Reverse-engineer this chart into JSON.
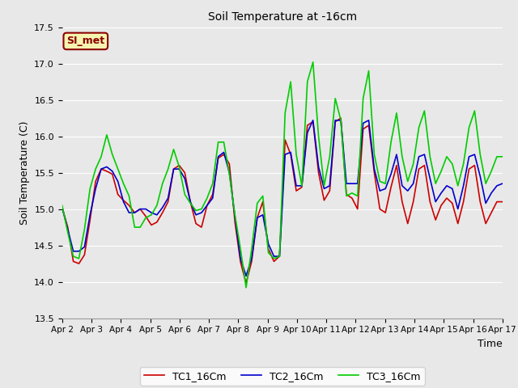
{
  "title": "Soil Temperature at -16cm",
  "xlabel": "Time",
  "ylabel": "Soil Temperature (C)",
  "ylim": [
    13.5,
    17.5
  ],
  "yticks": [
    13.5,
    14.0,
    14.5,
    15.0,
    15.5,
    16.0,
    16.5,
    17.0,
    17.5
  ],
  "background_color": "#e8e8e8",
  "plot_bg_color": "#e8e8e8",
  "grid_color": "#ffffff",
  "legend_label": "SI_met",
  "legend_bg": "#f5f5b0",
  "legend_border": "#8b0000",
  "series": [
    {
      "label": "TC1_16Cm",
      "color": "#cc0000"
    },
    {
      "label": "TC2_16Cm",
      "color": "#0000cc"
    },
    {
      "label": "TC3_16Cm",
      "color": "#00cc00"
    }
  ],
  "x_tick_labels": [
    "Apr 2",
    "Apr 3",
    "Apr 4",
    "Apr 5",
    "Apr 6",
    "Apr 7",
    "Apr 8",
    "Apr 9",
    "Apr 10",
    "Apr 11",
    "Apr 12",
    "Apr 13",
    "Apr 14",
    "Apr 15",
    "Apr 16",
    "Apr 17"
  ],
  "TC1_16Cm": [
    15.02,
    14.75,
    14.28,
    14.25,
    14.37,
    14.85,
    15.38,
    15.55,
    15.52,
    15.48,
    15.2,
    15.12,
    15.05,
    14.95,
    15.0,
    14.9,
    14.78,
    14.82,
    14.95,
    15.1,
    15.55,
    15.6,
    15.5,
    15.1,
    14.8,
    14.75,
    15.05,
    15.2,
    15.7,
    15.75,
    15.62,
    14.82,
    14.27,
    13.98,
    14.28,
    14.88,
    15.1,
    14.45,
    14.28,
    14.35,
    15.95,
    15.75,
    15.25,
    15.3,
    16.15,
    16.2,
    15.5,
    15.12,
    15.25,
    16.2,
    16.25,
    15.2,
    15.15,
    15.0,
    16.1,
    16.15,
    15.5,
    15.0,
    14.95,
    15.3,
    15.6,
    15.1,
    14.8,
    15.1,
    15.55,
    15.6,
    15.1,
    14.85,
    15.05,
    15.15,
    15.08,
    14.8,
    15.1,
    15.55,
    15.6,
    15.1,
    14.8,
    14.95,
    15.1,
    15.1
  ],
  "TC2_16Cm": [
    15.02,
    14.72,
    14.42,
    14.42,
    14.48,
    14.92,
    15.28,
    15.55,
    15.58,
    15.52,
    15.38,
    15.1,
    14.95,
    14.95,
    15.0,
    15.0,
    14.95,
    14.92,
    15.02,
    15.15,
    15.55,
    15.55,
    15.42,
    15.1,
    14.92,
    14.95,
    15.05,
    15.15,
    15.72,
    15.78,
    15.5,
    14.9,
    14.32,
    14.08,
    14.32,
    14.88,
    14.92,
    14.52,
    14.35,
    14.35,
    15.75,
    15.78,
    15.32,
    15.32,
    16.05,
    16.22,
    15.58,
    15.28,
    15.32,
    16.22,
    16.22,
    15.35,
    15.35,
    15.35,
    16.18,
    16.22,
    15.55,
    15.25,
    15.28,
    15.48,
    15.75,
    15.32,
    15.25,
    15.35,
    15.72,
    15.75,
    15.42,
    15.1,
    15.22,
    15.32,
    15.28,
    15.0,
    15.32,
    15.72,
    15.75,
    15.45,
    15.08,
    15.22,
    15.32,
    15.35
  ],
  "TC3_16Cm": [
    15.05,
    14.68,
    14.35,
    14.32,
    14.72,
    15.28,
    15.55,
    15.72,
    16.02,
    15.75,
    15.55,
    15.35,
    15.18,
    14.75,
    14.75,
    14.88,
    14.92,
    15.05,
    15.35,
    15.55,
    15.82,
    15.58,
    15.2,
    15.08,
    14.98,
    15.0,
    15.15,
    15.35,
    15.92,
    15.92,
    15.48,
    14.92,
    14.45,
    13.92,
    14.45,
    15.08,
    15.18,
    14.4,
    14.32,
    14.35,
    16.32,
    16.75,
    15.75,
    15.32,
    16.75,
    17.02,
    16.0,
    15.32,
    15.72,
    16.52,
    16.22,
    15.18,
    15.22,
    15.18,
    16.52,
    16.9,
    15.75,
    15.38,
    15.35,
    15.92,
    16.32,
    15.72,
    15.38,
    15.62,
    16.12,
    16.35,
    15.72,
    15.35,
    15.52,
    15.72,
    15.62,
    15.32,
    15.62,
    16.12,
    16.35,
    15.75,
    15.35,
    15.52,
    15.72,
    15.72
  ]
}
